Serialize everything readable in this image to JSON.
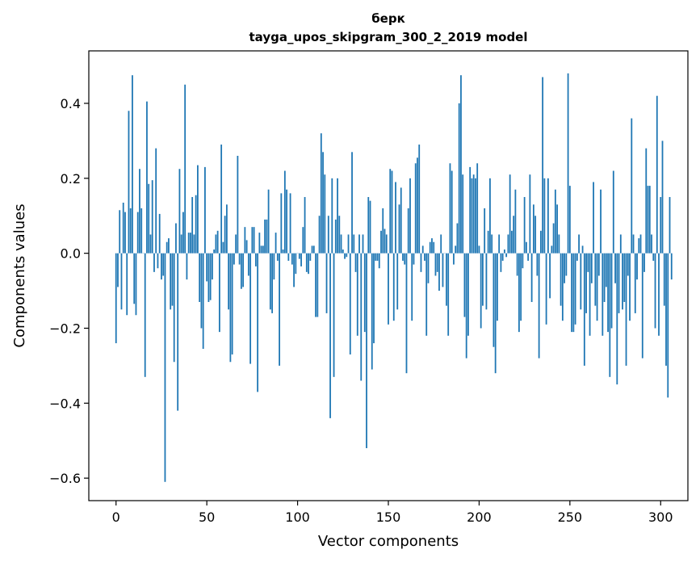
{
  "chart_data": {
    "type": "bar",
    "title": "берк",
    "subtitle": "tayga_upos_skipgram_300_2_2019 model",
    "xlabel": "Vector components",
    "ylabel": "Components values",
    "xlim": [
      -15,
      315
    ],
    "ylim": [
      -0.66,
      0.54
    ],
    "xticks": [
      0,
      50,
      100,
      150,
      200,
      250,
      300
    ],
    "yticks": [
      -0.6,
      -0.4,
      -0.2,
      0.0,
      0.2,
      0.4
    ],
    "ytick_labels": [
      "−0.6",
      "−0.4",
      "−0.2",
      "0.0",
      "0.2",
      "0.4"
    ],
    "bar_color": "#1f77b4",
    "grid": false,
    "values": [
      -0.24,
      -0.09,
      0.115,
      -0.15,
      0.135,
      0.11,
      -0.165,
      0.38,
      0.12,
      0.475,
      -0.135,
      -0.165,
      0.11,
      0.225,
      0.12,
      0.0,
      -0.33,
      0.405,
      0.185,
      0.05,
      0.195,
      -0.05,
      0.28,
      -0.04,
      0.105,
      -0.07,
      -0.06,
      -0.61,
      0.03,
      0.04,
      -0.15,
      -0.14,
      -0.29,
      0.08,
      -0.42,
      0.225,
      0.05,
      0.11,
      0.45,
      -0.07,
      0.055,
      0.055,
      0.15,
      0.05,
      0.155,
      0.235,
      -0.13,
      -0.2,
      -0.255,
      0.23,
      -0.075,
      -0.13,
      -0.125,
      -0.07,
      0.01,
      0.05,
      0.06,
      -0.21,
      0.29,
      0.03,
      0.1,
      0.13,
      -0.15,
      -0.29,
      -0.27,
      -0.03,
      0.05,
      0.26,
      -0.03,
      -0.095,
      -0.09,
      0.07,
      0.035,
      -0.06,
      -0.295,
      0.07,
      0.07,
      -0.035,
      -0.37,
      0.055,
      0.02,
      0.02,
      0.09,
      0.09,
      0.17,
      -0.15,
      -0.16,
      -0.07,
      0.055,
      -0.02,
      -0.3,
      0.16,
      0.01,
      0.22,
      0.17,
      -0.02,
      0.16,
      -0.03,
      -0.09,
      -0.055,
      0.0,
      -0.015,
      -0.035,
      0.07,
      0.15,
      -0.05,
      -0.055,
      -0.02,
      0.02,
      0.02,
      -0.17,
      -0.17,
      0.1,
      0.32,
      0.27,
      0.21,
      -0.16,
      0.1,
      -0.44,
      0.2,
      -0.33,
      0.09,
      0.2,
      0.1,
      0.05,
      0.01,
      -0.015,
      -0.01,
      0.05,
      -0.27,
      0.27,
      0.05,
      -0.05,
      -0.22,
      0.05,
      -0.34,
      0.05,
      -0.21,
      -0.52,
      0.15,
      0.14,
      -0.31,
      -0.24,
      -0.02,
      -0.02,
      -0.04,
      0.06,
      0.12,
      0.065,
      0.05,
      -0.19,
      0.225,
      0.22,
      -0.18,
      0.19,
      -0.15,
      0.13,
      0.175,
      -0.02,
      -0.03,
      -0.32,
      0.12,
      0.2,
      -0.18,
      -0.03,
      0.24,
      0.255,
      0.29,
      -0.05,
      0.02,
      -0.02,
      -0.22,
      -0.08,
      0.03,
      0.04,
      0.03,
      -0.06,
      -0.05,
      -0.1,
      0.05,
      -0.09,
      0.0,
      -0.14,
      -0.22,
      0.24,
      0.22,
      -0.03,
      0.02,
      0.08,
      0.4,
      0.475,
      0.21,
      -0.17,
      -0.28,
      -0.22,
      0.23,
      0.2,
      0.21,
      0.2,
      0.24,
      0.02,
      -0.2,
      -0.14,
      0.12,
      -0.15,
      0.06,
      0.2,
      0.05,
      -0.25,
      -0.32,
      -0.18,
      0.05,
      -0.05,
      -0.02,
      0.01,
      -0.01,
      0.05,
      0.21,
      0.06,
      0.1,
      0.17,
      -0.06,
      -0.21,
      -0.18,
      -0.04,
      0.15,
      0.03,
      -0.02,
      0.21,
      -0.13,
      0.13,
      0.1,
      -0.06,
      -0.28,
      0.06,
      0.47,
      0.2,
      -0.19,
      0.2,
      -0.12,
      0.02,
      0.08,
      0.17,
      0.13,
      0.05,
      -0.14,
      -0.18,
      -0.08,
      -0.06,
      0.48,
      0.18,
      -0.21,
      -0.21,
      -0.19,
      -0.02,
      0.05,
      -0.15,
      0.02,
      -0.3,
      -0.16,
      -0.05,
      -0.22,
      -0.08,
      0.19,
      -0.14,
      -0.18,
      -0.06,
      0.17,
      -0.22,
      -0.13,
      -0.09,
      -0.21,
      -0.33,
      -0.2,
      0.22,
      -0.08,
      -0.35,
      -0.16,
      0.05,
      -0.15,
      -0.13,
      -0.3,
      -0.06,
      -0.18,
      0.36,
      0.05,
      -0.16,
      -0.07,
      0.04,
      0.05,
      -0.28,
      -0.05,
      0.28,
      0.18,
      0.18,
      0.05,
      -0.02,
      -0.2,
      0.42,
      -0.22,
      0.15,
      0.3,
      -0.14,
      -0.3,
      -0.385,
      0.15,
      -0.07
    ]
  }
}
